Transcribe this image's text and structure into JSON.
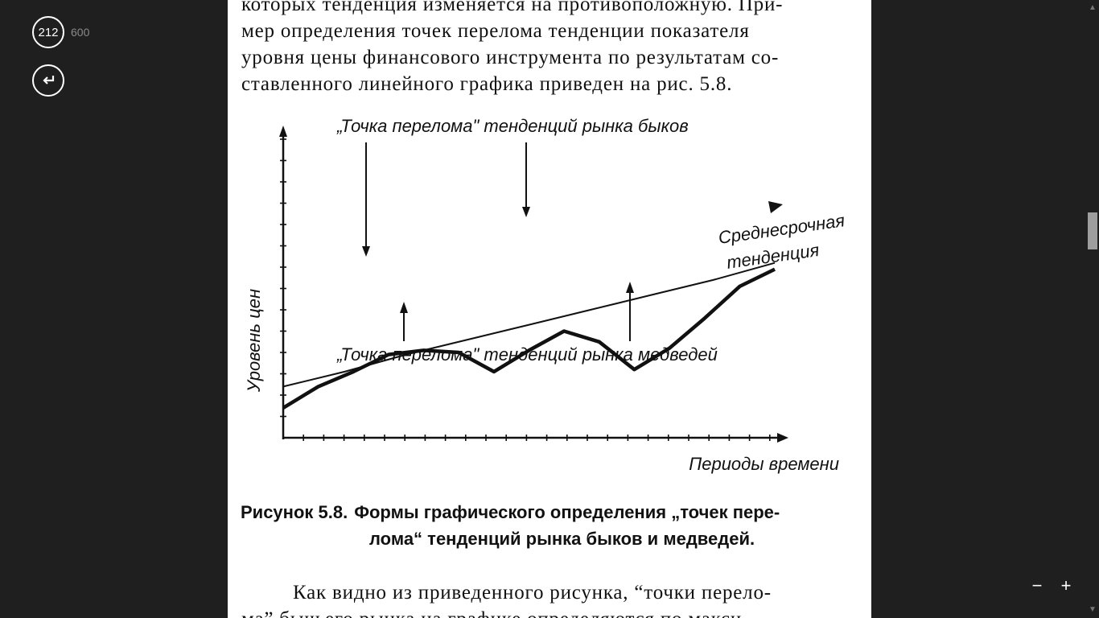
{
  "viewer": {
    "current_page": "212",
    "total_pages": "600",
    "zoom_out_label": "−",
    "zoom_in_label": "+",
    "back_icon": "return-arrow-icon"
  },
  "document": {
    "top_lines": [
      "которых тенденция изменяется на противоположную. При-",
      "мер определения точек перелома тенденции показателя",
      "уровня цены финансового инструмента по результатам со-",
      "ставленного линейного графика приведен на рис. 5.8."
    ],
    "bottom_lines": [
      "Как видно из приведенного рисунка, “точки перело-",
      "ма” бычьего рынка на графике определяются по макси-"
    ],
    "caption": {
      "number": "Рисунок 5.8.",
      "line1": "Формы графического определения „точек пере-",
      "line2": "лома“ тенденций рынка быков и медведей."
    }
  },
  "chart_data": {
    "type": "line",
    "title": "",
    "xlabel": "Периоды времени",
    "ylabel": "Уровень цен",
    "annotations": {
      "bull": "„Точка перелома\" тенденций рынка быков",
      "bear": "„Точка перелома\" тенденций рынка медведей",
      "trend_line1": "Среднесрочная",
      "trend_line2": "тенденция"
    },
    "series": [
      {
        "values": [
          1.4,
          2.4,
          3.1,
          3.9,
          4.1,
          4.0,
          3.1,
          4.1,
          5.0,
          4.5,
          3.2,
          4.2,
          5.6,
          7.1,
          7.9
        ]
      },
      {
        "values": [
          2.4,
          3.1,
          3.9,
          4.6,
          5.3,
          6.0,
          6.7,
          7.4,
          8.2
        ]
      }
    ]
  }
}
